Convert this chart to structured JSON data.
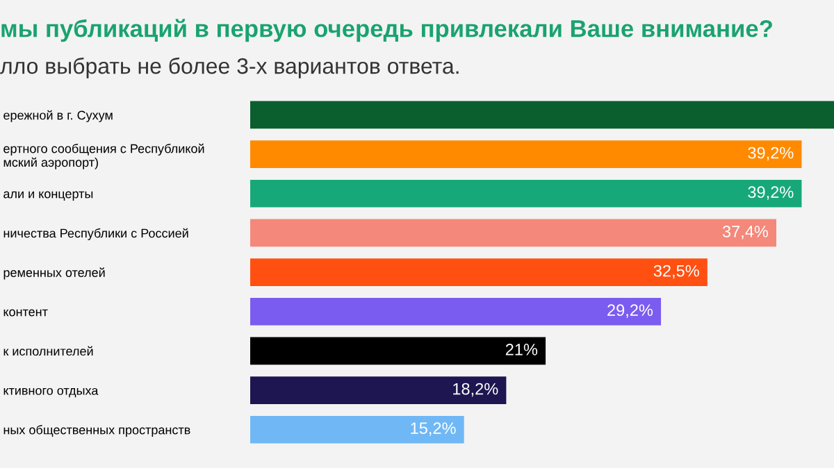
{
  "chart_data": {
    "type": "bar",
    "orientation": "horizontal",
    "title": "мы публикаций в первую очередь привлекали Ваше внимание?",
    "subtitle": "лло выбрать не более 3-х вариантов ответа.",
    "categories": [
      "ережной в г. Сухум",
      "ертного сообщения с Республикой\nмский аэропорт)",
      "али и концерты",
      "ничества Республики с Россией",
      "ременных отелей",
      "контент",
      "к исполнителей",
      "ктивного отдыха",
      "ных общественных пространств"
    ],
    "values": [
      41.5,
      39.2,
      39.2,
      37.4,
      32.5,
      29.2,
      21,
      18.2,
      15.2
    ],
    "value_labels": [
      null,
      "39,2%",
      "39,2%",
      "37,4%",
      "32,5%",
      "29,2%",
      "21%",
      "18,2%",
      "15,2%"
    ],
    "colors": [
      "#0b5e2e",
      "#ff8a00",
      "#17a87a",
      "#f4887a",
      "#ff5012",
      "#7b5cf0",
      "#000000",
      "#1e1650",
      "#6fb8f5"
    ],
    "xlim": [
      0,
      41.5
    ],
    "tick_labels": "y",
    "grid": false,
    "legend": false
  }
}
